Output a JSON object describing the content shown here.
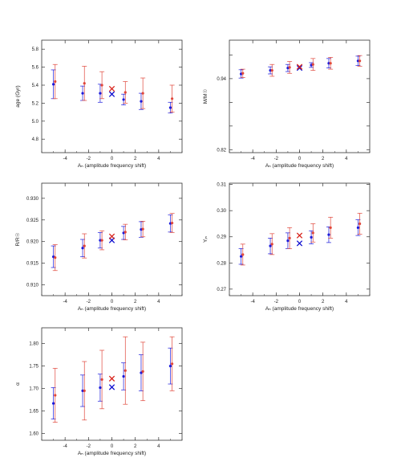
{
  "figure": {
    "background": "#ffffff",
    "colors": {
      "series_blue": "#1a1adb",
      "series_red": "#e0463a",
      "marker_blue": "#1010d0",
      "marker_red": "#d8241c",
      "axis": "#333333",
      "text": "#222222"
    }
  },
  "chart_data": [
    {
      "type": "scatter",
      "panel": "age",
      "title": "",
      "xlabel": "Aₙ (amplitude frequency shift)",
      "ylabel": "age (Gyr)",
      "xlim": [
        -6,
        6
      ],
      "ylim": [
        4.65,
        5.9
      ],
      "xticks": [
        -4,
        -2,
        0,
        2,
        4
      ],
      "yticks": [
        4.8,
        5.0,
        5.2,
        5.4,
        5.6,
        5.8
      ],
      "ytick_labels": [
        "4.8",
        "5.0",
        "5.2",
        "5.4",
        "5.6",
        "5.8"
      ],
      "grid": false,
      "series": [
        {
          "color": "blue",
          "x": [
            -5.0,
            -2.5,
            -1.0,
            1.0,
            2.5,
            5.0
          ],
          "y": [
            5.41,
            5.31,
            5.31,
            5.24,
            5.22,
            5.15
          ],
          "err": [
            0.16,
            0.08,
            0.1,
            0.06,
            0.09,
            0.06
          ]
        },
        {
          "color": "red",
          "x": [
            -4.85,
            -2.35,
            -0.85,
            1.15,
            2.65,
            5.15
          ],
          "y": [
            5.44,
            5.42,
            5.4,
            5.32,
            5.31,
            5.25
          ],
          "err": [
            0.19,
            0.19,
            0.15,
            0.12,
            0.17,
            0.15
          ]
        }
      ],
      "markers_x": {
        "blue": {
          "x": 0.0,
          "y": 5.3
        },
        "red": {
          "x": 0.0,
          "y": 5.36
        }
      }
    },
    {
      "type": "scatter",
      "panel": "mass",
      "title": "",
      "xlabel": "Aₙ (amplitude frequency shift)",
      "ylabel": "M/M☉",
      "xlim": [
        -6,
        6
      ],
      "ylim": [
        0.815,
        1.005
      ],
      "xticks": [
        -4,
        -2,
        0,
        2,
        4
      ],
      "yticks": [
        0.82,
        0.86,
        0.9,
        0.94,
        0.98
      ],
      "ytick_labels": [
        "0.82",
        "",
        "",
        "0.94",
        ""
      ],
      "grid": false,
      "series": [
        {
          "color": "blue",
          "x": [
            -5.0,
            -2.5,
            -1.0,
            1.0,
            2.5,
            5.0
          ],
          "y": [
            0.948,
            0.954,
            0.958,
            0.963,
            0.966,
            0.97
          ],
          "err": [
            0.007,
            0.006,
            0.006,
            0.004,
            0.008,
            0.008
          ]
        },
        {
          "color": "red",
          "x": [
            -4.85,
            -2.35,
            -0.85,
            1.15,
            2.65,
            5.15
          ],
          "y": [
            0.949,
            0.954,
            0.959,
            0.964,
            0.966,
            0.97
          ],
          "err": [
            0.007,
            0.01,
            0.01,
            0.01,
            0.01,
            0.009
          ]
        }
      ],
      "markers_x": {
        "blue": {
          "x": 0.0,
          "y": 0.958
        },
        "red": {
          "x": 0.0,
          "y": 0.96
        }
      }
    },
    {
      "type": "scatter",
      "panel": "radius",
      "title": "",
      "xlabel": "Aₙ (amplitude frequency shift)",
      "ylabel": "R/R☉",
      "xlim": [
        -6,
        6
      ],
      "ylim": [
        0.9075,
        0.9335
      ],
      "xticks": [
        -4,
        -2,
        0,
        2,
        4
      ],
      "yticks": [
        0.91,
        0.915,
        0.92,
        0.925,
        0.93
      ],
      "ytick_labels": [
        "0.910",
        "0.915",
        "0.920",
        "0.925",
        "0.930"
      ],
      "grid": false,
      "series": [
        {
          "color": "blue",
          "x": [
            -5.0,
            -2.5,
            -1.0,
            1.0,
            2.5,
            5.0
          ],
          "y": [
            0.9165,
            0.9185,
            0.9203,
            0.922,
            0.9228,
            0.9242
          ],
          "err": [
            0.0025,
            0.002,
            0.0018,
            0.0015,
            0.0018,
            0.002
          ]
        },
        {
          "color": "red",
          "x": [
            -4.85,
            -2.35,
            -0.85,
            1.15,
            2.65,
            5.15
          ],
          "y": [
            0.9163,
            0.919,
            0.9203,
            0.9222,
            0.9229,
            0.9243
          ],
          "err": [
            0.003,
            0.0028,
            0.0022,
            0.0018,
            0.0018,
            0.0022
          ]
        }
      ],
      "markers_x": {
        "blue": {
          "x": 0.0,
          "y": 0.9203
        },
        "red": {
          "x": 0.0,
          "y": 0.9212
        }
      }
    },
    {
      "type": "scatter",
      "panel": "helium",
      "title": "",
      "xlabel": "Aₙ (amplitude frequency shift)",
      "ylabel": "Yᵢₙ",
      "xlim": [
        -6,
        6
      ],
      "ylim": [
        0.2675,
        0.3105
      ],
      "xticks": [
        -4,
        -2,
        0,
        2,
        4
      ],
      "yticks": [
        0.27,
        0.28,
        0.29,
        0.3,
        0.31
      ],
      "ytick_labels": [
        "0.27",
        "0.28",
        "0.29",
        "0.30",
        "0.31"
      ],
      "grid": false,
      "series": [
        {
          "color": "blue",
          "x": [
            -5.0,
            -2.5,
            -1.0,
            1.0,
            2.5,
            5.0
          ],
          "y": [
            0.2825,
            0.2865,
            0.2885,
            0.2898,
            0.2908,
            0.2935
          ],
          "err": [
            0.003,
            0.003,
            0.003,
            0.0025,
            0.003,
            0.003
          ]
        },
        {
          "color": "red",
          "x": [
            -4.85,
            -2.35,
            -0.85,
            1.15,
            2.65,
            5.15
          ],
          "y": [
            0.2832,
            0.2872,
            0.2895,
            0.2915,
            0.2935,
            0.295
          ],
          "err": [
            0.004,
            0.004,
            0.004,
            0.0035,
            0.004,
            0.004
          ]
        }
      ],
      "markers_x": {
        "blue": {
          "x": 0.0,
          "y": 0.2875
        },
        "red": {
          "x": 0.0,
          "y": 0.2905
        }
      }
    },
    {
      "type": "scatter",
      "panel": "alpha",
      "title": "",
      "xlabel": "Aₙ (amplitude frequency shift)",
      "ylabel": "α",
      "xlim": [
        -6,
        6
      ],
      "ylim": [
        1.585,
        1.835
      ],
      "xticks": [
        -4,
        -2,
        0,
        2,
        4
      ],
      "yticks": [
        1.6,
        1.65,
        1.7,
        1.75,
        1.8
      ],
      "ytick_labels": [
        "1.60",
        "1.65",
        "1.70",
        "1.75",
        "1.80"
      ],
      "grid": false,
      "series": [
        {
          "color": "blue",
          "x": [
            -5.0,
            -2.5,
            -1.0,
            1.0,
            2.5,
            5.0
          ],
          "y": [
            1.667,
            1.695,
            1.702,
            1.727,
            1.735,
            1.75
          ],
          "err": [
            0.035,
            0.035,
            0.03,
            0.03,
            0.04,
            0.04
          ]
        },
        {
          "color": "red",
          "x": [
            -4.85,
            -2.35,
            -0.85,
            1.15,
            2.65,
            5.15
          ],
          "y": [
            1.685,
            1.695,
            1.72,
            1.74,
            1.738,
            1.755
          ],
          "err": [
            0.06,
            0.065,
            0.065,
            0.075,
            0.065,
            0.06
          ]
        }
      ],
      "markers_x": {
        "blue": {
          "x": 0.0,
          "y": 1.703
        },
        "red": {
          "x": 0.0,
          "y": 1.722
        }
      }
    }
  ]
}
